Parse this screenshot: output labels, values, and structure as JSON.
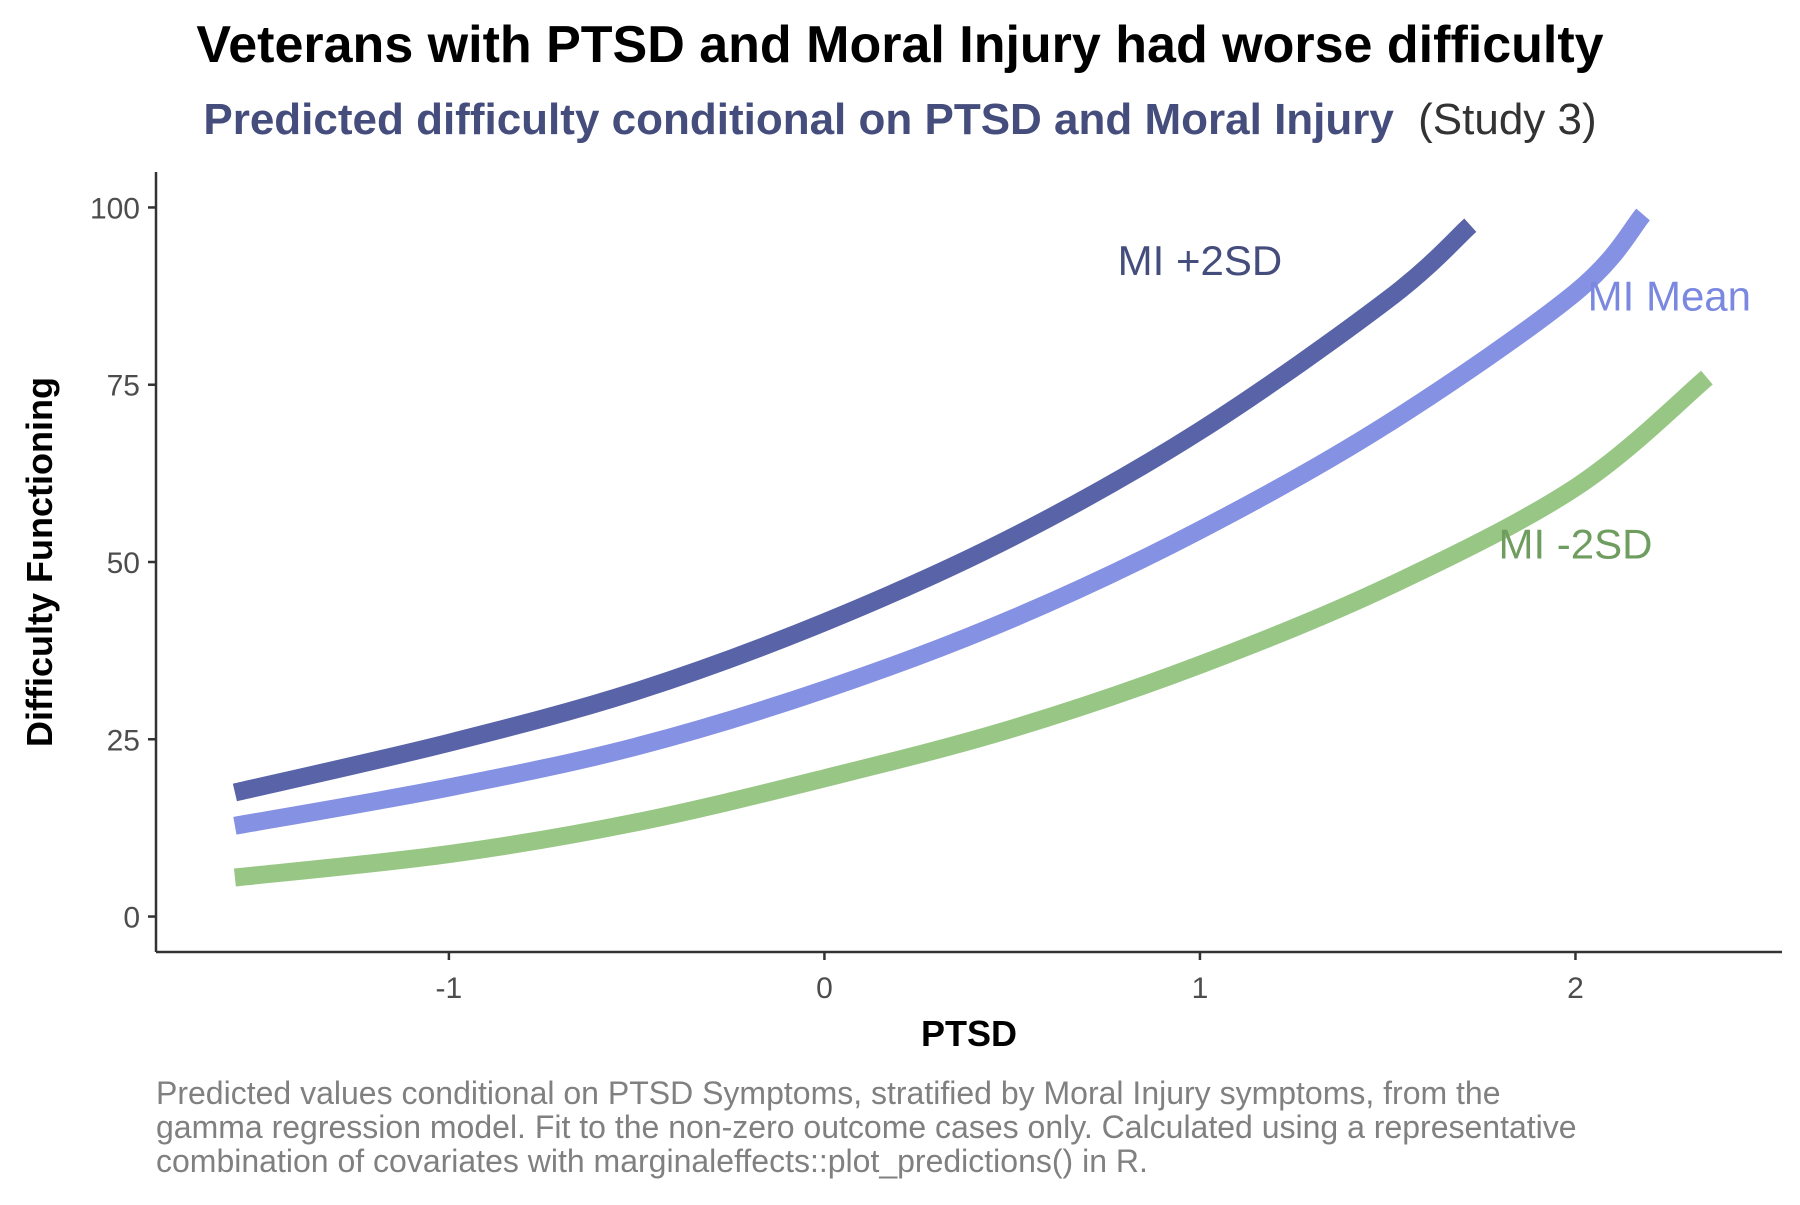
{
  "title": "Veterans with PTSD and Moral Injury had worse difficulty",
  "subtitle": {
    "bold": "Predicted difficulty conditional on PTSD and Moral Injury",
    "plain": "(Study 3)"
  },
  "caption": [
    "Predicted values conditional on PTSD Symptoms, stratified by Moral Injury symptoms, from the",
    "gamma regression model. Fit to the non-zero outcome cases only. Calculated using a representative",
    "combination of covariates with marginaleffects::plot_predictions() in R."
  ],
  "colors": {
    "title": "#000000",
    "subtitle_bold": "#454d7c",
    "subtitle_plain": "#333333",
    "caption": "#808080",
    "axis": "#333333",
    "tick_label": "#4d4d4d"
  },
  "chart_data": {
    "type": "line",
    "xlabel": "PTSD",
    "ylabel": "Difficulty Functioning",
    "xlim": [
      -1.78,
      2.55
    ],
    "ylim": [
      -5,
      105
    ],
    "x_ticks": [
      -1,
      0,
      1,
      2
    ],
    "x_tick_labels": [
      "-1",
      "0",
      "1",
      "2"
    ],
    "y_ticks": [
      0,
      25,
      50,
      75,
      100
    ],
    "y_tick_labels": [
      "0",
      "25",
      "50",
      "75",
      "100"
    ],
    "grid": false,
    "legend": "direct labels",
    "series": [
      {
        "name": "MI +2SD",
        "color": "#5964a8",
        "label_color": "#454d7c",
        "x": [
          -1.57,
          -1.0,
          -0.5,
          0.0,
          0.5,
          1.0,
          1.5,
          1.72
        ],
        "y": [
          17.5,
          24.5,
          31.8,
          41.5,
          53.5,
          68.5,
          87.0,
          97.5
        ],
        "label": {
          "x": 1.0,
          "y": 90.5
        }
      },
      {
        "name": "MI Mean",
        "color": "#8591e2",
        "label_color": "#7b88e0",
        "x": [
          -1.57,
          -1.0,
          -0.5,
          0.0,
          0.5,
          1.0,
          1.5,
          2.0,
          2.18
        ],
        "y": [
          12.8,
          18.2,
          24.0,
          32.0,
          42.0,
          54.5,
          69.5,
          88.0,
          99.0
        ],
        "label": {
          "x": 2.25,
          "y": 85.5
        }
      },
      {
        "name": "MI -2SD",
        "color": "#98c785",
        "label_color": "#6f9c5f",
        "x": [
          -1.57,
          -1.0,
          -0.5,
          0.0,
          0.5,
          1.0,
          1.5,
          2.0,
          2.35
        ],
        "y": [
          5.5,
          8.8,
          13.3,
          19.5,
          26.5,
          35.5,
          46.5,
          60.5,
          76.0
        ],
        "label": {
          "x": 2.0,
          "y": 50.5
        }
      }
    ]
  }
}
